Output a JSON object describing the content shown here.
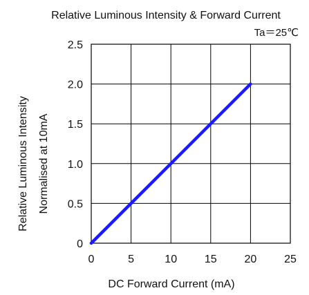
{
  "chart_data": {
    "type": "line",
    "title": "Relative Luminous Intensity & Forward Current",
    "condition": "Ta＝25℃",
    "xlabel": "DC Forward Current (mA)",
    "ylabel": "Relative Luminous Intensity",
    "ylabel2": "Normalised at 10mA",
    "xlim": [
      0,
      25
    ],
    "ylim": [
      0,
      2.5
    ],
    "xticks": [
      "0",
      "5",
      "10",
      "15",
      "20",
      "25"
    ],
    "yticks": [
      "0",
      "0.5",
      "1.0",
      "1.5",
      "2.0",
      "2.5"
    ],
    "grid": true,
    "legend": "none",
    "series": [
      {
        "x": [
          0,
          5,
          10,
          15,
          20
        ],
        "y": [
          0,
          0.5,
          1.0,
          1.5,
          2.0
        ],
        "color": "#1a1aff"
      }
    ]
  }
}
